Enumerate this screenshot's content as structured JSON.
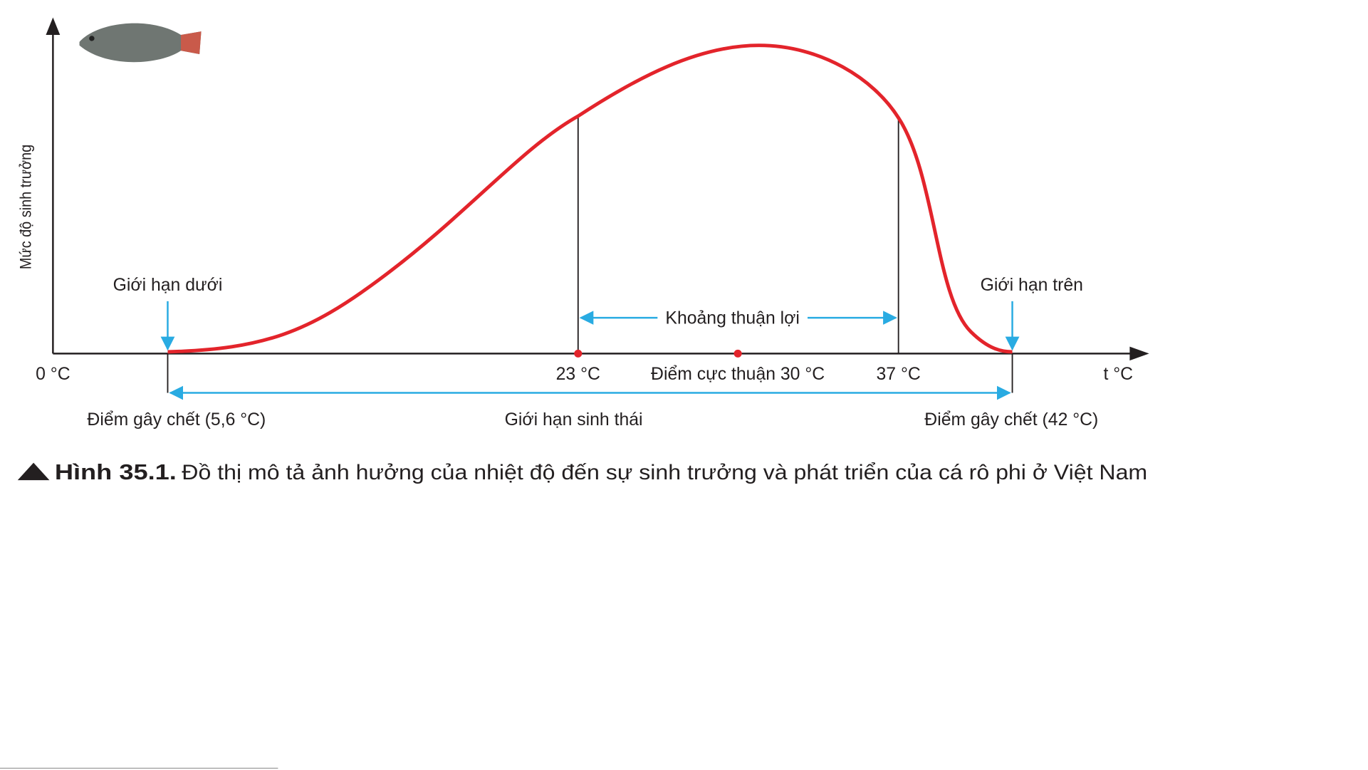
{
  "figure": {
    "axes": {
      "y_label": "Mức độ sinh trưởng",
      "x_label": "t °C",
      "origin": "0 °C"
    },
    "labels": {
      "lower_limit": "Giới hạn dưới",
      "upper_limit": "Giới hạn trên",
      "favorable_range": "Khoảng thuận lợi",
      "favorable_low": "23 °C",
      "optimum": "Điểm cực thuận 30 °C",
      "favorable_high": "37 °C",
      "lethal_low": "Điểm gây chết (5,6 °C)",
      "ecological_limit": "Giới hạn sinh thái",
      "lethal_high": "Điểm gây chết (42 °C)"
    },
    "caption": {
      "number": "Hình 35.1.",
      "text": "Đồ thị mô tả ảnh hưởng của nhiệt độ đến sự sinh trưởng và phát triển của cá rô phi ở Việt Nam"
    }
  }
}
